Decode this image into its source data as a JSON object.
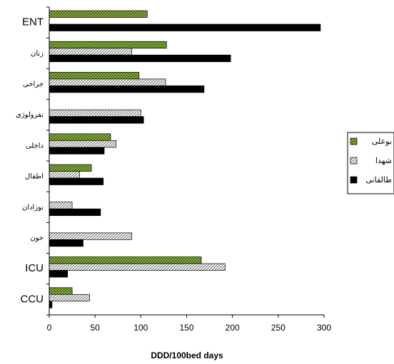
{
  "chart_data": {
    "type": "bar",
    "orientation": "horizontal",
    "categories": [
      "ENT",
      "زنان",
      "جراحی",
      "نفرولوژی",
      "داخلی",
      "اطفال",
      "نوزادان",
      "خون",
      "ICU",
      "CCU"
    ],
    "series": [
      {
        "name": "بوعلی",
        "color": "#9bc24b",
        "pattern": "crosshatch",
        "values": [
          107,
          128,
          98,
          null,
          67,
          46,
          null,
          null,
          166,
          25
        ]
      },
      {
        "name": "شهدا",
        "color": "#ffffff",
        "pattern": "diagonal",
        "values": [
          null,
          90,
          127,
          100,
          73,
          33,
          25,
          90,
          192,
          44
        ]
      },
      {
        "name": "طالقانی",
        "color": "#000000",
        "pattern": "solid",
        "values": [
          296,
          198,
          169,
          103,
          60,
          59,
          56,
          37,
          20,
          3
        ]
      }
    ],
    "xlabel": "DDD/100bed days",
    "ylabel": "",
    "xlim": [
      0,
      300
    ],
    "xticks": [
      "0",
      "50",
      "100",
      "150",
      "200",
      "250",
      "300"
    ],
    "grid": false,
    "legend": "right"
  }
}
